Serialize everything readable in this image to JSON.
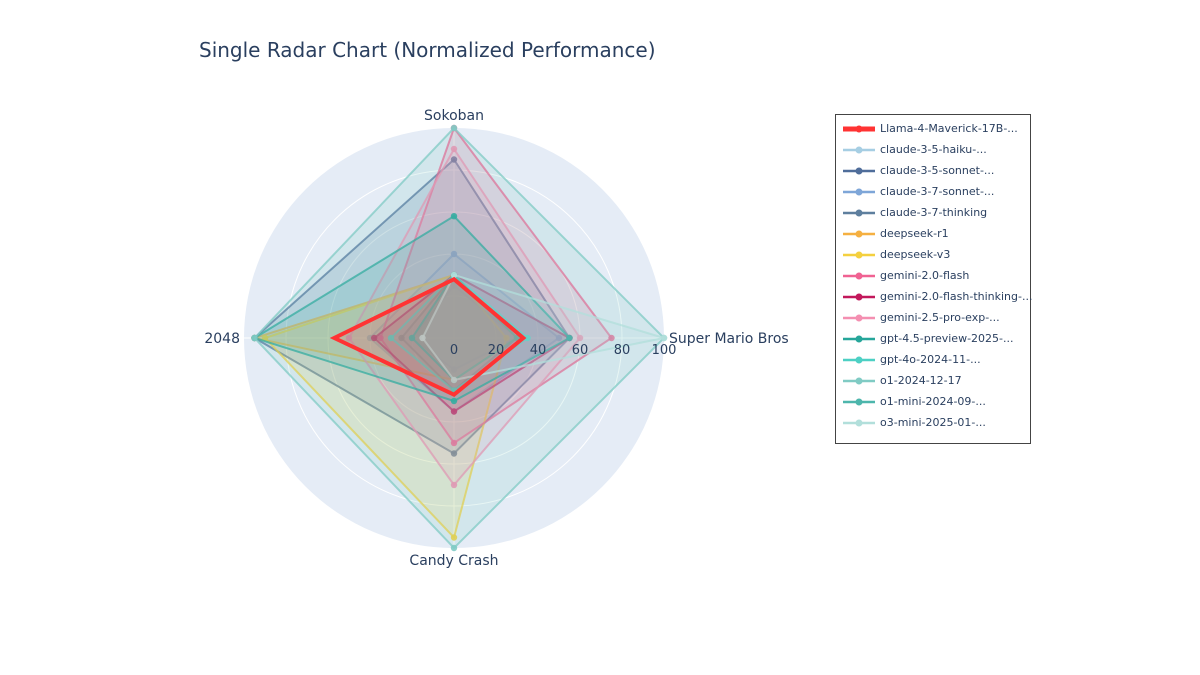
{
  "chart_data": {
    "type": "radar",
    "title": "Single Radar Chart (Normalized Performance)",
    "axes": [
      "Super Mario Bros",
      "Sokoban",
      "2048",
      "Candy Crash"
    ],
    "radial_range": [
      0,
      100
    ],
    "radial_ticks": [
      "0",
      "20",
      "40",
      "60",
      "80",
      "100"
    ],
    "legend_position": "right",
    "series": [
      {
        "name": "claude-3-5-haiku-...",
        "color": "#a6cee3",
        "values": [
          30,
          25,
          20,
          15
        ]
      },
      {
        "name": "claude-3-5-sonnet-...",
        "color": "#4f6d9a",
        "values": [
          55,
          85,
          95,
          55
        ]
      },
      {
        "name": "claude-3-7-sonnet-...",
        "color": "#7ea6d8",
        "values": [
          50,
          40,
          40,
          35
        ]
      },
      {
        "name": "claude-3-7-thinking",
        "color": "#5e7f9e",
        "values": [
          30,
          30,
          25,
          25
        ]
      },
      {
        "name": "deepseek-r1",
        "color": "#f5b041",
        "values": [
          30,
          30,
          95,
          20
        ]
      },
      {
        "name": "deepseek-v3",
        "color": "#f4d03f",
        "values": [
          25,
          30,
          90,
          95
        ]
      },
      {
        "name": "gemini-2.0-flash",
        "color": "#f06292",
        "values": [
          75,
          100,
          35,
          50
        ]
      },
      {
        "name": "gemini-2.0-flash-thinking-...",
        "color": "#c2185b",
        "values": [
          55,
          30,
          38,
          35
        ]
      },
      {
        "name": "gemini-2.5-pro-exp-...",
        "color": "#f48fb1",
        "values": [
          60,
          90,
          50,
          70
        ]
      },
      {
        "name": "gpt-4.5-preview-2025-...",
        "color": "#26a69a",
        "values": [
          55,
          58,
          95,
          30
        ]
      },
      {
        "name": "gpt-4o-2024-11-...",
        "color": "#4dd0c4",
        "values": [
          35,
          30,
          30,
          25
        ]
      },
      {
        "name": "o1-2024-12-17",
        "color": "#80cbc4",
        "values": [
          100,
          100,
          95,
          100
        ]
      },
      {
        "name": "o1-mini-2024-09-...",
        "color": "#4db6ac",
        "values": [
          30,
          30,
          20,
          20
        ]
      },
      {
        "name": "o3-mini-2025-01-...",
        "color": "#b2dfdb",
        "values": [
          100,
          30,
          15,
          20
        ]
      },
      {
        "name": "Llama-4-Maverick-17B-...",
        "color": "#ff3333",
        "values": [
          33,
          28,
          57,
          27
        ],
        "highlight": true
      }
    ],
    "legend_order": [
      "Llama-4-Maverick-17B-...",
      "claude-3-5-haiku-...",
      "claude-3-5-sonnet-...",
      "claude-3-7-sonnet-...",
      "claude-3-7-thinking",
      "deepseek-r1",
      "deepseek-v3",
      "gemini-2.0-flash",
      "gemini-2.0-flash-thinking-...",
      "gemini-2.5-pro-exp-...",
      "gpt-4.5-preview-2025-...",
      "gpt-4o-2024-11-...",
      "o1-2024-12-17",
      "o1-mini-2024-09-...",
      "o3-mini-2025-01-..."
    ],
    "colors": {
      "polar_background": "#e5ecf6",
      "grid": "#ffffff",
      "text": "#2a3f5f"
    }
  }
}
